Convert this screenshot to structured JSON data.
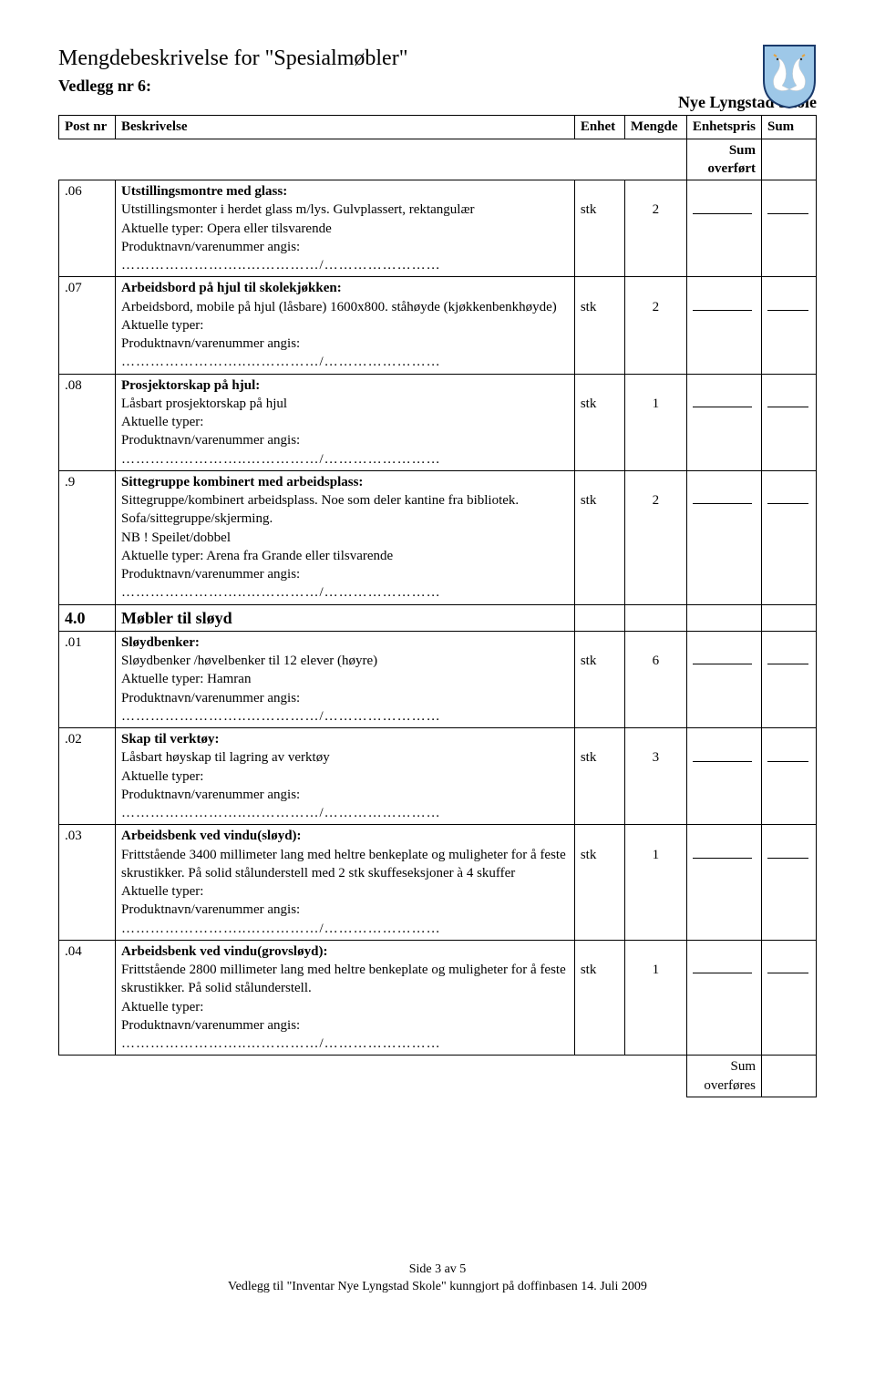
{
  "doc": {
    "title": "Mengdebeskrivelse for \"Spesialmøbler\"",
    "vedlegg": "Vedlegg nr 6:",
    "skole": "Nye Lyngstad Skole"
  },
  "columns": {
    "post": "Post nr",
    "desc": "Beskrivelse",
    "enhet": "Enhet",
    "mengde": "Mengde",
    "pris": "Enhetspris",
    "sum": "Sum"
  },
  "labels": {
    "sum_overfort": "Sum overført",
    "sum_overfores": "Sum overføres",
    "aktuelle_typer": "Aktuelle typer:",
    "produktnavn": "Produktnavn/varenummer angis:",
    "dots": "……………………..……………/……………………"
  },
  "section": {
    "post": "4.0",
    "title": "Møbler til sløyd"
  },
  "items": [
    {
      "post": ".06",
      "title": "Utstillingsmontre med glass:",
      "body": "Utstillingsmonter i herdet glass m/lys. Gulvplassert, rektangulær",
      "aktuelle": "Aktuelle typer: Opera eller tilsvarende",
      "enhet": "stk",
      "mengde": "2"
    },
    {
      "post": ".07",
      "title": "Arbeidsbord på hjul til skolekjøkken:",
      "body": "Arbeidsbord, mobile på hjul (låsbare) 1600x800. ståhøyde (kjøkkenbenkhøyde)",
      "aktuelle": "Aktuelle typer:",
      "enhet": "stk",
      "mengde": "2"
    },
    {
      "post": ".08",
      "title": "Prosjektorskap på hjul:",
      "body": "Låsbart prosjektorskap på hjul",
      "aktuelle": "Aktuelle typer:",
      "enhet": "stk",
      "mengde": "1"
    },
    {
      "post": ".9",
      "title": "Sittegruppe kombinert med arbeidsplass:",
      "body": "Sittegruppe/kombinert arbeidsplass. Noe som deler kantine fra bibliotek. Sofa/sittegruppe/skjerming.",
      "extra": "NB ! Speilet/dobbel",
      "aktuelle": "Aktuelle typer:  Arena fra Grande eller tilsvarende",
      "enhet": "stk",
      "mengde": "2"
    }
  ],
  "items2": [
    {
      "post": ".01",
      "title": "Sløydbenker:",
      "body": "Sløydbenker /høvelbenker til 12 elever (høyre)",
      "aktuelle": "Aktuelle typer: Hamran",
      "enhet": "stk",
      "mengde": "6"
    },
    {
      "post": ".02",
      "title": "Skap til verktøy:",
      "body": "Låsbart høyskap til lagring av verktøy",
      "aktuelle": "Aktuelle typer:",
      "enhet": "stk",
      "mengde": "3"
    },
    {
      "post": ".03",
      "title": "Arbeidsbenk ved vindu(sløyd):",
      "body": "Frittstående 3400 millimeter lang med heltre benkeplate og muligheter for å feste skrustikker. På solid stålunderstell med 2 stk skuffeseksjoner à 4 skuffer",
      "aktuelle": "Aktuelle typer:",
      "enhet": "stk",
      "mengde": "1"
    },
    {
      "post": ".04",
      "title": "Arbeidsbenk ved vindu(grovsløyd):",
      "body": "Frittstående 2800 millimeter lang med heltre benkeplate og muligheter for å feste skrustikker. På solid stålunderstell.",
      "aktuelle": "Aktuelle typer:",
      "enhet": "stk",
      "mengde": "1"
    }
  ],
  "footer": {
    "page": "Side 3 av 5",
    "line": "Vedlegg til \"Inventar Nye Lyngstad Skole\" kunngjort på doffinbasen 14. Juli 2009"
  },
  "colors": {
    "shield_blue": "#9ec8e8",
    "shield_border": "#1a3a6b",
    "swan_white": "#ffffff",
    "swan_beak": "#e6a23c"
  }
}
